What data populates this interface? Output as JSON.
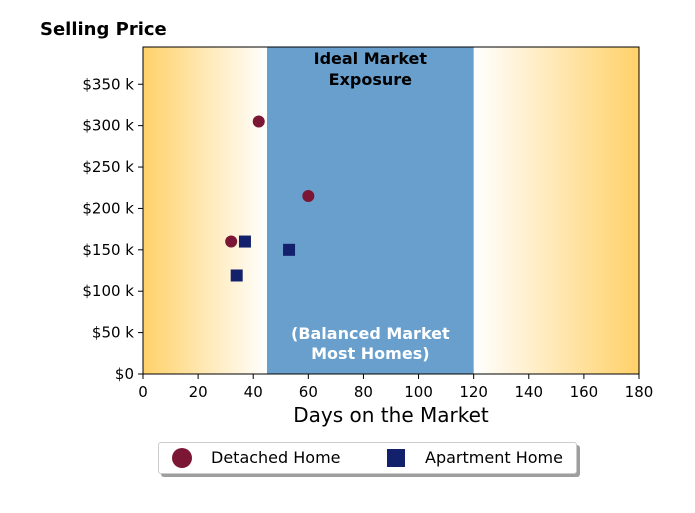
{
  "chart_data": {
    "type": "scatter",
    "title": "Selling Price",
    "xlabel": "Days on the Market",
    "ylabel": "",
    "xlim": [
      0,
      180
    ],
    "ylim": [
      0,
      395000
    ],
    "x_ticks": [
      0,
      20,
      40,
      60,
      80,
      100,
      120,
      140,
      160,
      180
    ],
    "x_tick_labels": [
      "0",
      "20",
      "40",
      "60",
      "80",
      "100",
      "120",
      "140",
      "160",
      "180"
    ],
    "y_ticks": [
      0,
      50000,
      100000,
      150000,
      200000,
      250000,
      300000,
      350000
    ],
    "y_tick_labels": [
      "$0",
      "$50 k",
      "$100 k",
      "$150 k",
      "$200 k",
      "$250 k",
      "$300 k",
      "$350 k"
    ],
    "grid": false,
    "legend_placement": "bottom-center",
    "shaded_region": {
      "x_start": 45,
      "x_end": 120,
      "color": "#689fcc"
    },
    "background_gradient_color": "#ffd169",
    "annotations": {
      "top": [
        "Ideal Market",
        "Exposure"
      ],
      "bottom": [
        "(Balanced Market",
        "Most Homes)"
      ]
    },
    "series": [
      {
        "name": "Detached Home",
        "marker": "circle",
        "color": "#7b1735",
        "points": [
          [
            42,
            305000
          ],
          [
            32,
            160000
          ],
          [
            60,
            215000
          ]
        ]
      },
      {
        "name": "Apartment Home",
        "marker": "square",
        "color": "#13206b",
        "points": [
          [
            37,
            160000
          ],
          [
            34,
            119000
          ],
          [
            53,
            150000
          ]
        ]
      }
    ]
  }
}
